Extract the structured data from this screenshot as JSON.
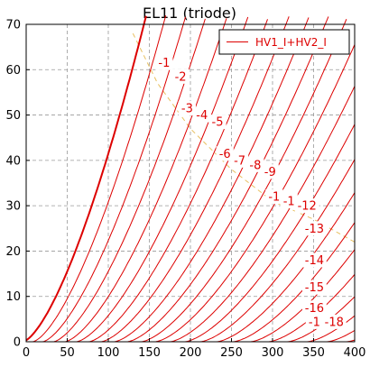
{
  "chart_data": {
    "type": "line",
    "title": "EL11 (triode)",
    "xlabel": "",
    "ylabel": "",
    "xlim": [
      0,
      400
    ],
    "ylim": [
      0,
      70
    ],
    "xticks": [
      0,
      50,
      100,
      150,
      200,
      250,
      300,
      350,
      400
    ],
    "yticks": [
      0,
      10,
      20,
      30,
      40,
      50,
      60,
      70
    ],
    "grid": true,
    "grid_style": "dashed",
    "legend": {
      "position": "top-right",
      "entries": [
        "HV1_I+HV2_I"
      ]
    },
    "series_color": "#dd0000",
    "load_line_color": "#e8c060",
    "model": "Ia(Va) = K·(Va − Va0)^1.5 for each grid voltage; Va0 = cutoff anode voltage",
    "curves": [
      {
        "grid_v": 0,
        "K": 0.0391,
        "Va0": -4,
        "bold": true
      },
      {
        "grid_v": -1,
        "K": 0.0349,
        "Va0": 8
      },
      {
        "grid_v": -2,
        "K": 0.0312,
        "Va0": 20
      },
      {
        "grid_v": -3,
        "K": 0.0283,
        "Va0": 33
      },
      {
        "grid_v": -4,
        "K": 0.0258,
        "Va0": 47
      },
      {
        "grid_v": -5,
        "K": 0.0237,
        "Va0": 61
      },
      {
        "grid_v": -6,
        "K": 0.0221,
        "Va0": 76
      },
      {
        "grid_v": -7,
        "K": 0.0207,
        "Va0": 91
      },
      {
        "grid_v": -8,
        "K": 0.0196,
        "Va0": 107
      },
      {
        "grid_v": -9,
        "K": 0.0187,
        "Va0": 123
      },
      {
        "grid_v": -10,
        "K": 0.018,
        "Va0": 140
      },
      {
        "grid_v": -11,
        "K": 0.0173,
        "Va0": 157
      },
      {
        "grid_v": -12,
        "K": 0.0167,
        "Va0": 175
      },
      {
        "grid_v": -13,
        "K": 0.0161,
        "Va0": 193
      },
      {
        "grid_v": -14,
        "K": 0.0156,
        "Va0": 212
      },
      {
        "grid_v": -15,
        "K": 0.0151,
        "Va0": 232
      },
      {
        "grid_v": -16,
        "K": 0.0146,
        "Va0": 252
      },
      {
        "grid_v": -17,
        "K": 0.0142,
        "Va0": 273
      },
      {
        "grid_v": -18,
        "K": 0.0138,
        "Va0": 295
      },
      {
        "grid_v": -19,
        "K": 0.0134,
        "Va0": 318
      },
      {
        "grid_v": -20,
        "K": 0.013,
        "Va0": 342
      },
      {
        "grid_v": -21,
        "K": 0.0126,
        "Va0": 366
      },
      {
        "grid_v": -22,
        "K": 0.0122,
        "Va0": 390
      }
    ],
    "curve_labels": [
      {
        "text": "-1",
        "x": 168,
        "y": 61.5
      },
      {
        "text": "-2",
        "x": 188,
        "y": 58.5
      },
      {
        "text": "-3",
        "x": 196,
        "y": 51.5
      },
      {
        "text": "-4",
        "x": 214,
        "y": 50
      },
      {
        "text": "-5",
        "x": 233,
        "y": 48.5
      },
      {
        "text": "-6",
        "x": 242,
        "y": 41.5
      },
      {
        "text": "-7",
        "x": 260,
        "y": 40
      },
      {
        "text": "-8",
        "x": 279,
        "y": 39
      },
      {
        "text": "-9",
        "x": 297,
        "y": 37.5
      },
      {
        "text": "-1",
        "x": 302,
        "y": 32
      },
      {
        "text": "-1",
        "x": 320,
        "y": 31
      },
      {
        "text": "-12",
        "x": 342,
        "y": 30
      },
      {
        "text": "-13",
        "x": 351,
        "y": 25
      },
      {
        "text": "-14",
        "x": 351,
        "y": 18
      },
      {
        "text": "-15",
        "x": 351,
        "y": 12
      },
      {
        "text": "-16",
        "x": 351,
        "y": 7.5
      },
      {
        "text": "-1",
        "x": 351,
        "y": 4.4
      },
      {
        "text": "-18",
        "x": 375,
        "y": 4.4
      }
    ],
    "load_line": [
      [
        130,
        68
      ],
      [
        160,
        57
      ],
      [
        200,
        47
      ],
      [
        250,
        38
      ],
      [
        300,
        31
      ],
      [
        350,
        27
      ],
      [
        400,
        22
      ]
    ]
  }
}
